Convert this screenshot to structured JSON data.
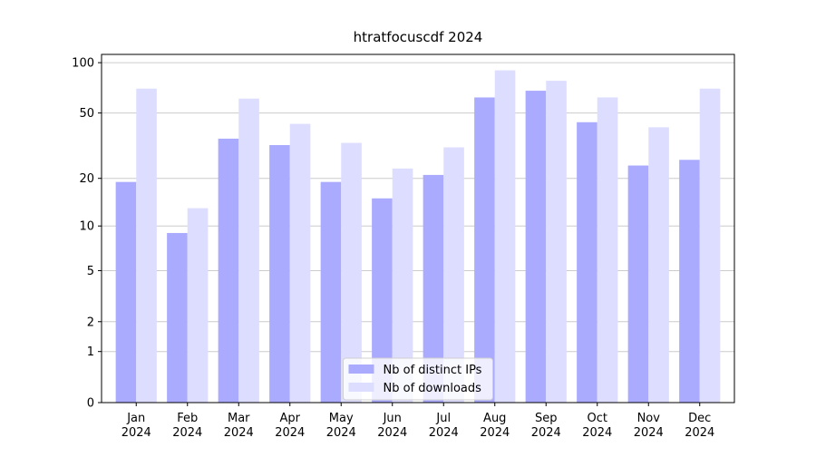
{
  "chart_data": {
    "type": "bar",
    "title": "htratfocuscdf 2024",
    "categories": [
      "Jan 2024",
      "Feb 2024",
      "Mar 2024",
      "Apr 2024",
      "May 2024",
      "Jun 2024",
      "Jul 2024",
      "Aug 2024",
      "Sep 2024",
      "Oct 2024",
      "Nov 2024",
      "Dec 2024"
    ],
    "series": [
      {
        "name": "Nb of distinct IPs",
        "color": "#aaaaff",
        "values": [
          19,
          9,
          35,
          32,
          19,
          15,
          21,
          62,
          68,
          44,
          24,
          26
        ]
      },
      {
        "name": "Nb of downloads",
        "color": "#ddddff",
        "values": [
          70,
          13,
          61,
          43,
          33,
          23,
          31,
          90,
          78,
          62,
          41,
          70
        ]
      }
    ],
    "yscale": "log1p",
    "ylim": [
      0,
      112
    ],
    "yticks": [
      0,
      1,
      2,
      5,
      10,
      20,
      50,
      100
    ],
    "grid": true,
    "legend": "lower center"
  }
}
